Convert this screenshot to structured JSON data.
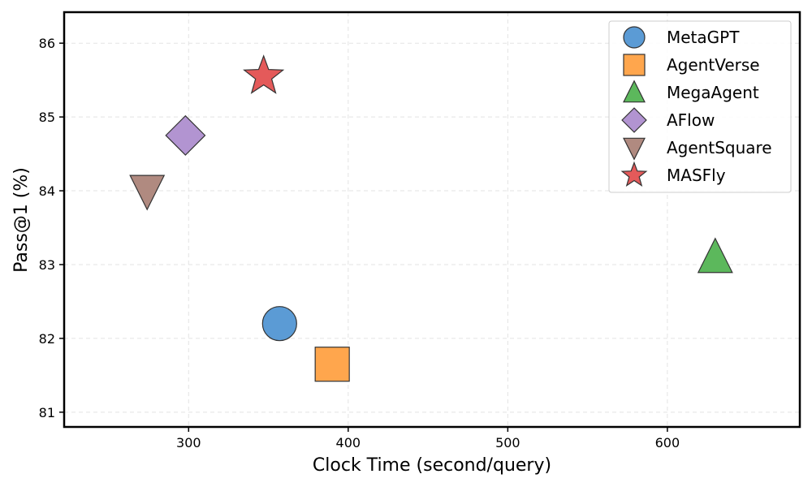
{
  "chart_data": {
    "type": "scatter",
    "xlabel": "Clock Time (second/query)",
    "ylabel": "Pass@1 (%)",
    "xlim": [
      222,
      683
    ],
    "ylim": [
      80.8,
      86.42
    ],
    "xticks": [
      300,
      400,
      500,
      600
    ],
    "yticks": [
      81,
      82,
      83,
      84,
      85,
      86
    ],
    "grid": true,
    "legend_position": "top-right",
    "series": [
      {
        "name": "MetaGPT",
        "marker": "circle",
        "color": "#5b9bd5",
        "x": 357,
        "y": 82.2
      },
      {
        "name": "AgentVerse",
        "marker": "square",
        "color": "#ffa64d",
        "x": 390,
        "y": 81.65
      },
      {
        "name": "MegaAgent",
        "marker": "triangle-up",
        "color": "#5cb85c",
        "x": 630,
        "y": 83.1
      },
      {
        "name": "AFlow",
        "marker": "diamond",
        "color": "#b294d1",
        "x": 298,
        "y": 84.75
      },
      {
        "name": "AgentSquare",
        "marker": "triangle-down",
        "color": "#b08a80",
        "x": 274,
        "y": 84.0
      },
      {
        "name": "MASFly",
        "marker": "star",
        "color": "#e45a5a",
        "x": 347,
        "y": 85.55
      }
    ]
  }
}
